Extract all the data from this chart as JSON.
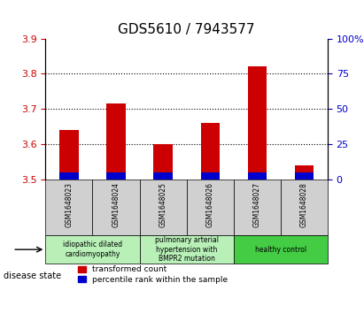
{
  "title": "GDS5610 / 7943577",
  "samples": [
    "GSM1648023",
    "GSM1648024",
    "GSM1648025",
    "GSM1648026",
    "GSM1648027",
    "GSM1648028"
  ],
  "transformed_count": [
    3.64,
    3.715,
    3.6,
    3.66,
    3.82,
    3.54
  ],
  "percentile_rank": [
    4.5,
    4.5,
    4.5,
    4.5,
    4.5,
    4.5
  ],
  "bar_base": 3.5,
  "ylim_left": [
    3.5,
    3.9
  ],
  "ylim_right": [
    0,
    100
  ],
  "yticks_left": [
    3.5,
    3.6,
    3.7,
    3.8,
    3.9
  ],
  "yticks_right": [
    0,
    25,
    50,
    75,
    100
  ],
  "ytick_labels_right": [
    "0",
    "25",
    "50",
    "75",
    "100%"
  ],
  "red_color": "#cc0000",
  "blue_color": "#0000cc",
  "grid_color": "#000000",
  "disease_groups": [
    {
      "label": "idiopathic dilated\ncardiomyopathy",
      "samples": [
        0,
        1
      ],
      "color": "#ccffcc"
    },
    {
      "label": "pulmonary arterial\nhypertension with\nBMPR2 mutation",
      "samples": [
        2,
        3
      ],
      "color": "#ccffcc"
    },
    {
      "label": "healthy control",
      "samples": [
        4,
        5
      ],
      "color": "#33cc33"
    }
  ],
  "legend_red": "transformed count",
  "legend_blue": "percentile rank within the sample",
  "disease_state_label": "disease state",
  "bar_width": 0.4,
  "tick_fontsize": 8,
  "title_fontsize": 11
}
